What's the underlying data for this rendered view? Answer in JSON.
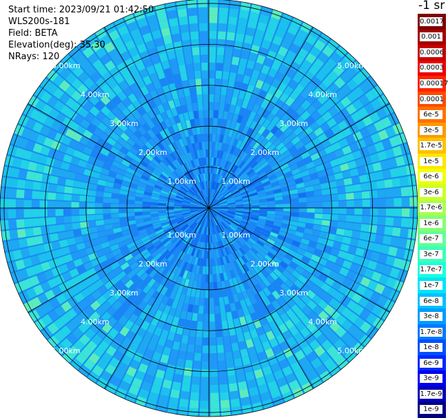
{
  "header": {
    "start_time": "Start time: 2023/09/21 01:42:50",
    "instrument": "WLS200s-181",
    "field": "Field: BETA",
    "elevation": "Elevation(deg): 35.30",
    "nrays": "NRays: 120"
  },
  "colorbar": {
    "unit_label": "-1 sr",
    "labels": [
      "0.0017",
      "0.001",
      "0.0006",
      "0.0003",
      "0.00017",
      "0.0001",
      "6e-5",
      "3e-5",
      "1.7e-5",
      "1e-5",
      "6e-6",
      "3e-6",
      "1.7e-6",
      "1e-6",
      "6e-7",
      "3e-7",
      "1.7e-7",
      "1e-7",
      "6e-8",
      "3e-8",
      "1.7e-8",
      "1e-8",
      "6e-9",
      "3e-9",
      "1.7e-9",
      "1e-9"
    ],
    "colors": [
      "#7f0000",
      "#a40000",
      "#c80000",
      "#ee0000",
      "#ff2400",
      "#ff4a00",
      "#ff7100",
      "#ff9800",
      "#ffc000",
      "#ffe600",
      "#f0ff07",
      "#ccff2b",
      "#a8ff4f",
      "#84ff73",
      "#60ff97",
      "#3cffbb",
      "#19ffde",
      "#00e4f8",
      "#00c0ff",
      "#009cff",
      "#0078ff",
      "#0050ff",
      "#0028ff",
      "#0000f1",
      "#0000b6",
      "#000080"
    ]
  },
  "chart_data": {
    "type": "heatmap",
    "projection": "polar-ppi",
    "field": "BETA",
    "elevation_deg": 35.3,
    "n_rays": 120,
    "range_rings_km": [
      1,
      2,
      3,
      4,
      5
    ],
    "ring_labels": [
      "1.00km",
      "2.00km",
      "3.00km",
      "4.00km",
      "5.00km"
    ],
    "max_range_km": 5.1,
    "scale": "log",
    "value_range": [
      1e-09,
      0.0017
    ],
    "spoke_step_deg": 30,
    "grid": true
  }
}
